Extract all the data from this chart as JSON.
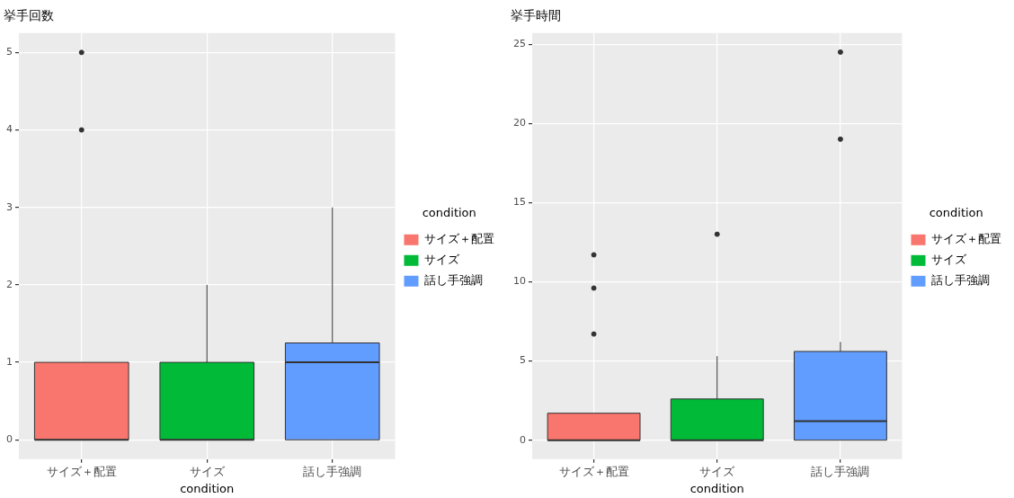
{
  "chart_data": [
    {
      "type": "box",
      "title": "挙手回数",
      "xlabel": "condition",
      "legend_title": "condition",
      "legend": "right",
      "grid": true,
      "categories": [
        "サイズ＋配置",
        "サイズ",
        "話し手強調"
      ],
      "series": [
        {
          "name": "サイズ＋配置",
          "color": "#f8766d",
          "boxes": [
            {
              "low": 0,
              "q1": 0,
              "median": 0,
              "q3": 1,
              "high": 1,
              "outliers": [
                4,
                5
              ]
            },
            null,
            null
          ]
        },
        {
          "name": "サイズ",
          "color": "#00ba38",
          "boxes": [
            null,
            {
              "low": 0,
              "q1": 0,
              "median": 0,
              "q3": 1,
              "high": 2
            },
            null
          ]
        },
        {
          "name": "話し手強調",
          "color": "#619cff",
          "boxes": [
            null,
            null,
            {
              "low": 0,
              "q1": 0,
              "median": 1,
              "q3": 1.25,
              "high": 3
            }
          ]
        }
      ],
      "ylim": [
        -0.25,
        5.25
      ],
      "yticks": [
        0,
        1,
        2,
        3,
        4,
        5
      ]
    },
    {
      "type": "box",
      "title": "挙手時間",
      "xlabel": "condition",
      "legend_title": "condition",
      "legend": "right",
      "grid": true,
      "categories": [
        "サイズ＋配置",
        "サイズ",
        "話し手強調"
      ],
      "series": [
        {
          "name": "サイズ＋配置",
          "color": "#f8766d",
          "boxes": [
            {
              "low": 0,
              "q1": 0,
              "median": 0,
              "q3": 1.7,
              "high": 1.7,
              "outliers": [
                6.7,
                9.6,
                11.7
              ]
            },
            null,
            null
          ]
        },
        {
          "name": "サイズ",
          "color": "#00ba38",
          "boxes": [
            null,
            {
              "low": 0,
              "q1": 0,
              "median": 0,
              "q3": 2.6,
              "high": 5.3,
              "outliers": [
                13
              ]
            },
            null
          ]
        },
        {
          "name": "話し手強調",
          "color": "#619cff",
          "boxes": [
            null,
            null,
            {
              "low": 0,
              "q1": 0,
              "median": 1.2,
              "q3": 5.6,
              "high": 6.2,
              "outliers": [
                19,
                24.5
              ]
            }
          ]
        }
      ],
      "ylim": [
        -1.2,
        25.7
      ],
      "yticks": [
        0,
        5,
        10,
        15,
        20,
        25
      ]
    }
  ]
}
